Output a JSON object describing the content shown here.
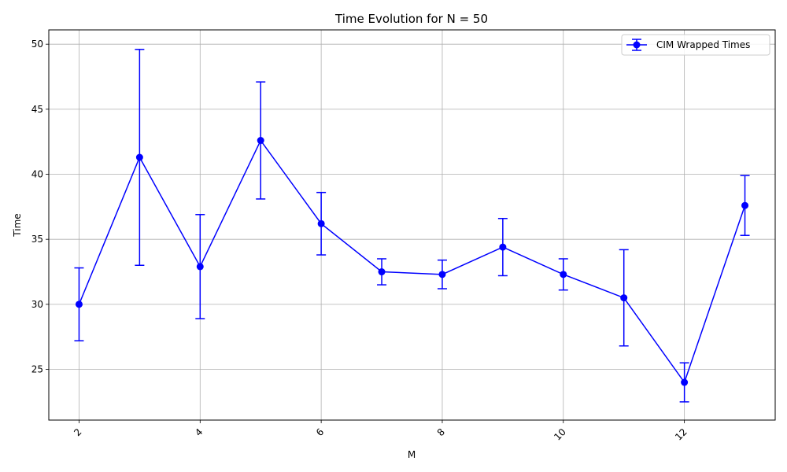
{
  "chart_data": {
    "type": "line",
    "title": "Time Evolution for N = 50",
    "xlabel": "M",
    "ylabel": "Time",
    "xlim": [
      1.5,
      13.5
    ],
    "ylim": [
      21.1,
      51.1
    ],
    "x_ticks": [
      2,
      4,
      6,
      8,
      10,
      12
    ],
    "y_ticks": [
      25,
      30,
      35,
      40,
      45,
      50
    ],
    "x_tick_rotation": 45,
    "grid": true,
    "legend_position": "top-right",
    "error_bars": true,
    "series": [
      {
        "name": "CIM Wrapped Times",
        "color": "#0000ff",
        "marker": "circle",
        "x": [
          2,
          3,
          4,
          5,
          6,
          7,
          8,
          9,
          10,
          11,
          12,
          13
        ],
        "y": [
          30.0,
          41.3,
          32.9,
          42.6,
          36.2,
          32.5,
          32.3,
          34.4,
          32.3,
          30.5,
          24.0,
          37.6
        ],
        "err": [
          2.8,
          8.3,
          4.0,
          4.5,
          2.4,
          1.0,
          1.1,
          2.2,
          1.2,
          3.7,
          1.5,
          2.3
        ]
      }
    ]
  }
}
